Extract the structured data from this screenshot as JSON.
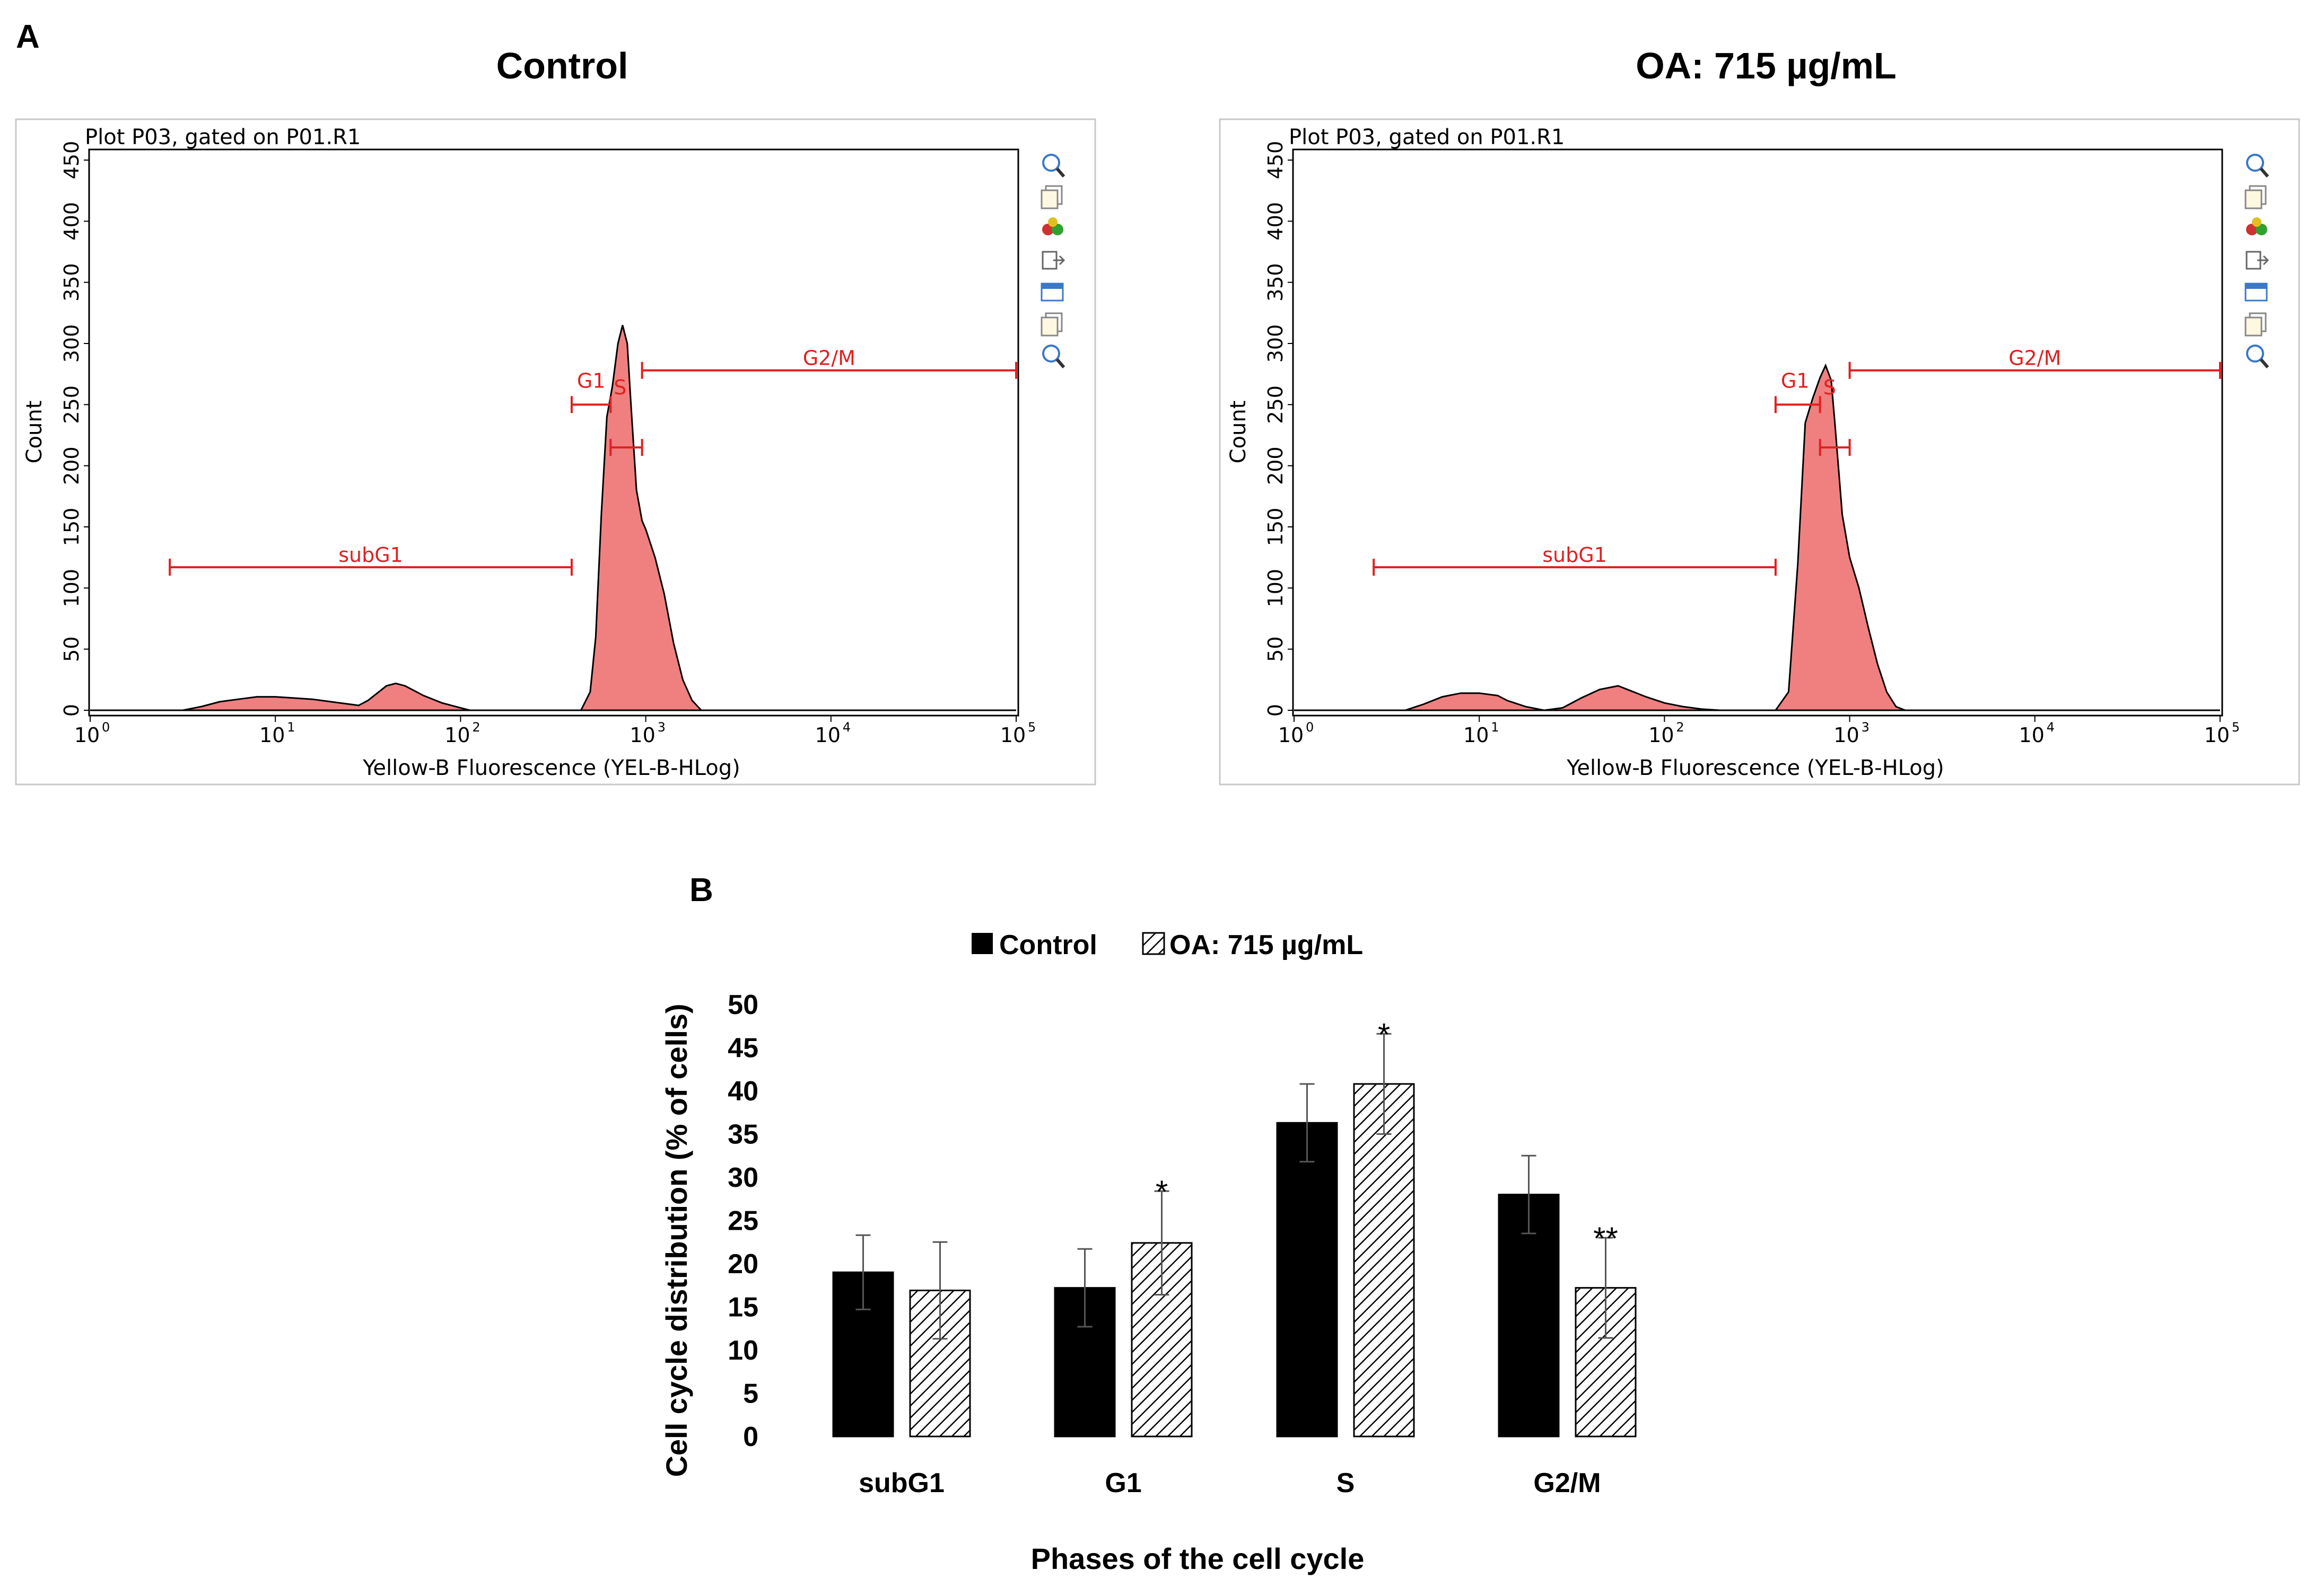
{
  "panels": {
    "a": "A",
    "b": "B"
  },
  "histograms": [
    {
      "title": "Control",
      "plot_title": "Plot P03, gated on P01.R1",
      "xlabel": "Yellow-B Fluorescence (YEL-B-HLog)",
      "ylabel": "Count",
      "curve": [
        [
          0.0,
          0
        ],
        [
          0.5,
          0
        ],
        [
          0.6,
          3
        ],
        [
          0.7,
          7
        ],
        [
          0.8,
          9
        ],
        [
          0.9,
          11
        ],
        [
          1.0,
          11
        ],
        [
          1.1,
          10
        ],
        [
          1.2,
          9
        ],
        [
          1.3,
          7
        ],
        [
          1.4,
          5
        ],
        [
          1.45,
          4
        ],
        [
          1.5,
          8
        ],
        [
          1.55,
          14
        ],
        [
          1.6,
          20
        ],
        [
          1.65,
          22
        ],
        [
          1.7,
          20
        ],
        [
          1.75,
          16
        ],
        [
          1.8,
          12
        ],
        [
          1.9,
          6
        ],
        [
          2.0,
          2
        ],
        [
          2.05,
          0
        ],
        [
          2.65,
          0
        ],
        [
          2.7,
          15
        ],
        [
          2.73,
          60
        ],
        [
          2.76,
          160
        ],
        [
          2.79,
          240
        ],
        [
          2.82,
          265
        ],
        [
          2.85,
          300
        ],
        [
          2.875,
          315
        ],
        [
          2.9,
          300
        ],
        [
          2.92,
          250
        ],
        [
          2.95,
          180
        ],
        [
          2.98,
          155
        ],
        [
          3.0,
          148
        ],
        [
          3.05,
          125
        ],
        [
          3.1,
          95
        ],
        [
          3.15,
          55
        ],
        [
          3.2,
          25
        ],
        [
          3.25,
          8
        ],
        [
          3.3,
          0
        ],
        [
          5,
          0
        ]
      ],
      "gates": [
        {
          "name": "subG1",
          "x0": 0.43,
          "x1": 2.6,
          "y": 117
        },
        {
          "name": "G1",
          "x0": 2.6,
          "x1": 2.81,
          "y": 250
        },
        {
          "name": "S",
          "x0": 2.81,
          "x1": 2.98,
          "y": 215
        },
        {
          "name": "G2/M",
          "x0": 2.98,
          "x1": 5.0,
          "y": 278
        }
      ]
    },
    {
      "title": "OA: 715 µg/mL",
      "plot_title": "Plot P03, gated on P01.R1",
      "xlabel": "Yellow-B Fluorescence (YEL-B-HLog)",
      "ylabel": "Count",
      "curve": [
        [
          0.0,
          0
        ],
        [
          0.6,
          0
        ],
        [
          0.7,
          5
        ],
        [
          0.8,
          11
        ],
        [
          0.9,
          14
        ],
        [
          1.0,
          14
        ],
        [
          1.1,
          12
        ],
        [
          1.15,
          8
        ],
        [
          1.25,
          3
        ],
        [
          1.35,
          0
        ],
        [
          1.45,
          2
        ],
        [
          1.55,
          10
        ],
        [
          1.65,
          17
        ],
        [
          1.75,
          20
        ],
        [
          1.8,
          17
        ],
        [
          1.9,
          11
        ],
        [
          2.0,
          6
        ],
        [
          2.1,
          3
        ],
        [
          2.2,
          1
        ],
        [
          2.3,
          0
        ],
        [
          2.6,
          0
        ],
        [
          2.67,
          15
        ],
        [
          2.72,
          120
        ],
        [
          2.76,
          235
        ],
        [
          2.8,
          255
        ],
        [
          2.84,
          272
        ],
        [
          2.87,
          282
        ],
        [
          2.9,
          270
        ],
        [
          2.92,
          235
        ],
        [
          2.96,
          160
        ],
        [
          3.0,
          125
        ],
        [
          3.05,
          100
        ],
        [
          3.1,
          68
        ],
        [
          3.15,
          38
        ],
        [
          3.2,
          15
        ],
        [
          3.25,
          3
        ],
        [
          3.3,
          0
        ],
        [
          5,
          0
        ]
      ],
      "gates": [
        {
          "name": "subG1",
          "x0": 0.43,
          "x1": 2.6,
          "y": 117
        },
        {
          "name": "G1",
          "x0": 2.6,
          "x1": 2.84,
          "y": 250
        },
        {
          "name": "S",
          "x0": 2.84,
          "x1": 3.0,
          "y": 215
        },
        {
          "name": "G2/M",
          "x0": 3.0,
          "x1": 5.0,
          "y": 278
        }
      ]
    }
  ],
  "histogram_axes": {
    "y_ticks": [
      "0",
      "50",
      "100",
      "150",
      "200",
      "250",
      "300",
      "350",
      "400",
      "450"
    ],
    "x_tick_base": [
      "10",
      "10",
      "10",
      "10",
      "10",
      "10"
    ],
    "x_tick_exp": [
      "0",
      "1",
      "2",
      "3",
      "4",
      "5"
    ]
  },
  "chart_data": {
    "type": "bar",
    "title": "",
    "xlabel": "Phases of the cell cycle",
    "ylabel": "Cell cycle distribution (% of cells)",
    "ylim": [
      0,
      50
    ],
    "y_ticks": [
      "0",
      "5",
      "10",
      "15",
      "20",
      "25",
      "30",
      "35",
      "40",
      "45",
      "50"
    ],
    "categories": [
      "subG1",
      "G1",
      "S",
      "G2/M"
    ],
    "series": [
      {
        "name": "Control",
        "values": [
          19.0,
          17.2,
          36.3,
          28.0
        ],
        "errors": [
          4.3,
          4.5,
          4.5,
          4.5
        ]
      },
      {
        "name": "OA: 715 µg/mL",
        "values": [
          16.9,
          22.4,
          40.8,
          17.2
        ],
        "errors": [
          5.6,
          6.0,
          5.8,
          5.8
        ]
      }
    ],
    "significance": [
      {
        "category": "G1",
        "series": "OA: 715 µg/mL",
        "mark": "*"
      },
      {
        "category": "S",
        "series": "OA: 715 µg/mL",
        "mark": "*"
      },
      {
        "category": "G2/M",
        "series": "OA: 715 µg/mL",
        "mark": "**"
      }
    ]
  },
  "legend": {
    "control": "Control",
    "treated": "OA: 715 µg/mL"
  },
  "colors": {
    "fill": "#f08080",
    "gate": "#e02020",
    "control_bar": "#000000"
  }
}
